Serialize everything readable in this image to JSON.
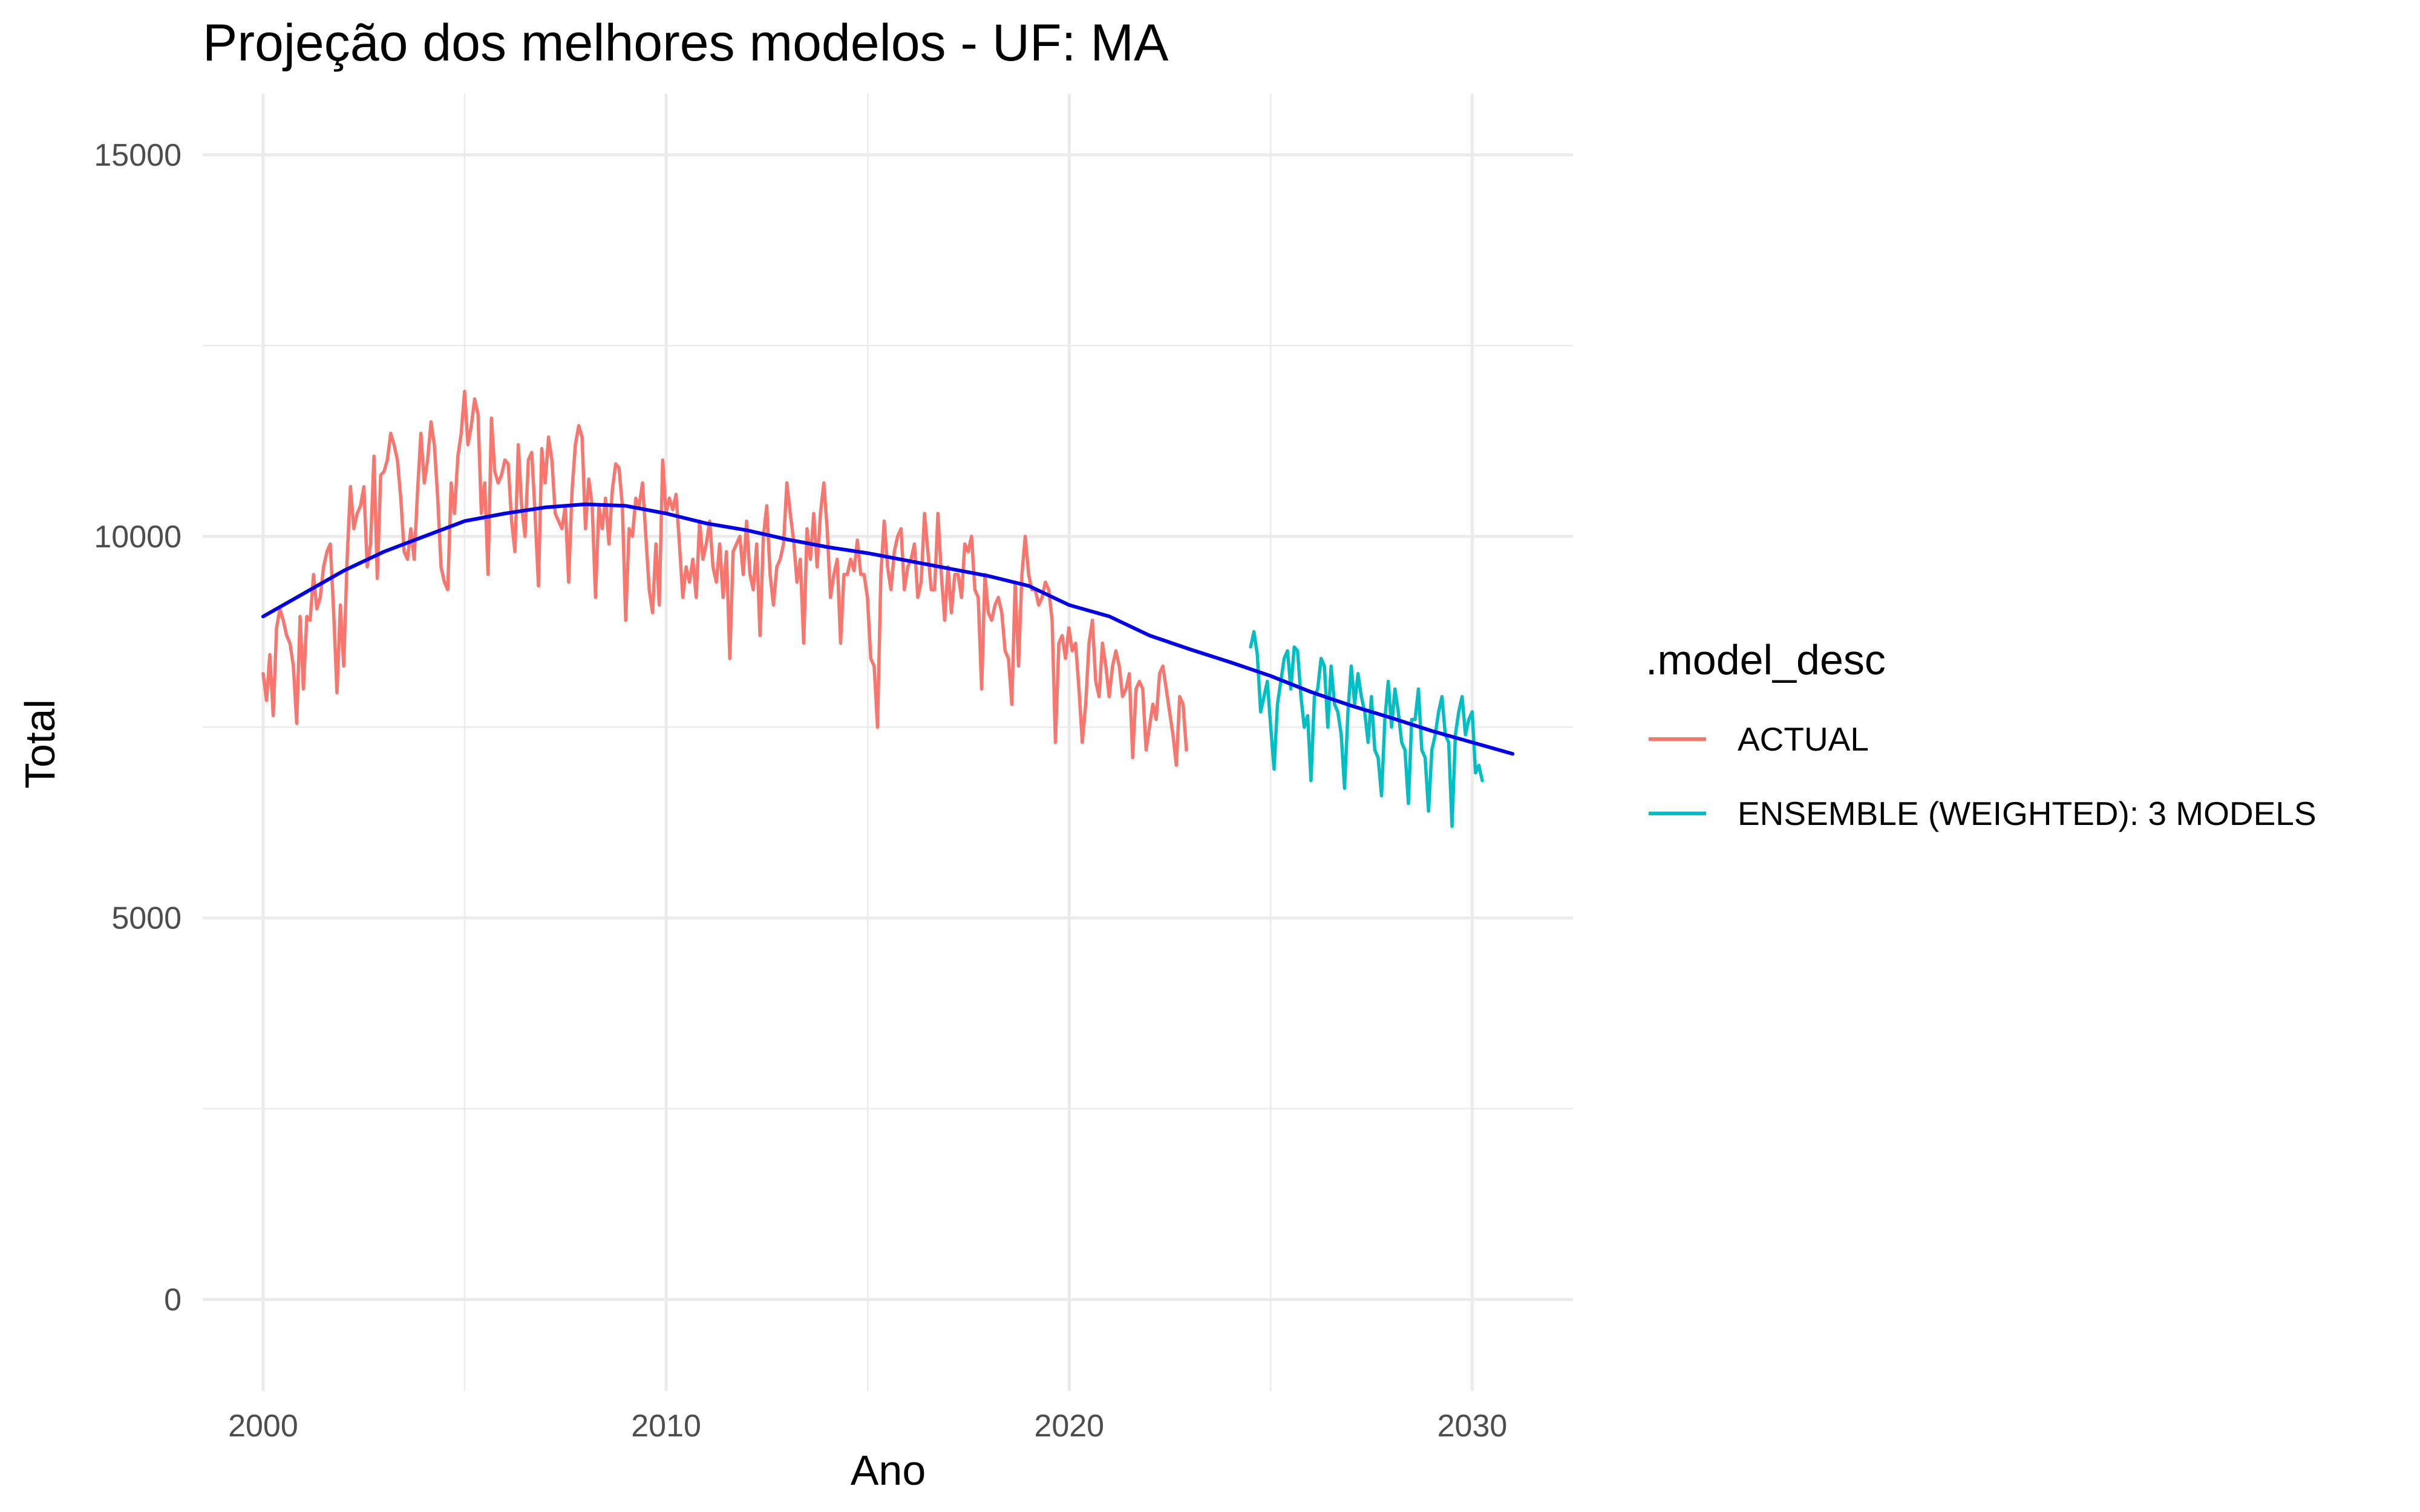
{
  "chart_data": {
    "type": "line",
    "title": "Projeção dos melhores modelos - UF: MA",
    "xlabel": "Ano",
    "ylabel": "Total",
    "xlim": [
      1998.5,
      2032.5
    ],
    "ylim": [
      -1200,
      15800
    ],
    "x_ticks": [
      2000,
      2010,
      2020,
      2030
    ],
    "x_tick_labels": [
      "2000",
      "2010",
      "2020",
      "2030"
    ],
    "y_ticks": [
      0,
      5000,
      10000,
      15000
    ],
    "y_tick_labels": [
      "0",
      "5000",
      "10000",
      "15000"
    ],
    "grid": true,
    "legend": {
      "title": ".model_desc",
      "position": "right"
    },
    "series": [
      {
        "name": "ACTUAL",
        "color": "#F8766D",
        "x_start": 2000.0,
        "x_step": 0.0833,
        "values": [
          8200,
          7850,
          8450,
          7650,
          8800,
          9050,
          8900,
          8700,
          8600,
          8300,
          7550,
          8950,
          8000,
          8950,
          8900,
          9500,
          9050,
          9200,
          9600,
          9800,
          9900,
          9000,
          7950,
          9100,
          8300,
          9700,
          10650,
          10100,
          10300,
          10400,
          10650,
          9600,
          9900,
          11050,
          9450,
          10800,
          10850,
          11000,
          11350,
          11200,
          11000,
          10500,
          9800,
          9700,
          10100,
          9700,
          10600,
          11350,
          10700,
          11000,
          11500,
          11200,
          10500,
          9600,
          9400,
          9300,
          10700,
          10300,
          11050,
          11350,
          11900,
          11200,
          11450,
          11800,
          11600,
          10300,
          10700,
          9500,
          11550,
          10850,
          10700,
          10800,
          11000,
          10950,
          10200,
          9800,
          11200,
          10400,
          10000,
          11000,
          11100,
          10300,
          9350,
          11150,
          10700,
          11300,
          11000,
          10300,
          10200,
          10100,
          10400,
          9400,
          10600,
          11200,
          11450,
          11300,
          10100,
          10750,
          10400,
          9200,
          10400,
          10100,
          10500,
          9900,
          10600,
          10950,
          10900,
          10400,
          8900,
          10100,
          10000,
          10500,
          10400,
          10700,
          10000,
          9300,
          9000,
          9900,
          9100,
          11000,
          10300,
          10500,
          10350,
          10550,
          9900,
          9200,
          9600,
          9400,
          9700,
          9200,
          10200,
          9700,
          9900,
          10200,
          9600,
          9400,
          9900,
          9200,
          9800,
          8400,
          9800,
          9900,
          10000,
          9500,
          10200,
          9500,
          9300,
          9900,
          8700,
          10000,
          10400,
          9500,
          9100,
          9600,
          9700,
          9900,
          10700,
          10300,
          9950,
          9400,
          9700,
          8600,
          10100,
          9700,
          10300,
          9600,
          10300,
          10700,
          10100,
          9200,
          9500,
          9700,
          8600,
          9500,
          9500,
          9700,
          9550,
          9950,
          9500,
          9500,
          9200,
          8400,
          8300,
          7500,
          9500,
          10200,
          9600,
          9300,
          9800,
          10000,
          10100,
          9300,
          9600,
          9700,
          9900,
          9200,
          9400,
          10300,
          9800,
          9300,
          9300,
          10300,
          9500,
          8900,
          9600,
          9000,
          9500,
          9500,
          9200,
          9900,
          9800,
          10000,
          9300,
          9200,
          8000,
          9500,
          9000,
          8900,
          9100,
          9200,
          9000,
          8500,
          8400,
          7800,
          9400,
          8300,
          9500,
          10000,
          9500,
          9300,
          9300,
          9100,
          9200,
          9400,
          9300,
          8900,
          7300,
          8600,
          8700,
          8400,
          8800,
          8500,
          8600,
          8000,
          7300,
          7800,
          8600,
          8900,
          8100,
          7900,
          8600,
          8300,
          7900,
          8300,
          8500,
          8300,
          7900,
          8000,
          8200,
          7100,
          8000,
          8100,
          8000,
          7200,
          7500,
          7800,
          7600,
          8200,
          8300,
          8000,
          7700,
          7400,
          7000,
          7900,
          7800,
          7200
        ]
      },
      {
        "name": "ENSEMBLE (WEIGHTED): 3 MODELS",
        "color": "#00BFC4",
        "x_start": 2024.5,
        "x_step": 0.0833,
        "values": [
          8550,
          8750,
          8450,
          7700,
          7900,
          8100,
          7500,
          6950,
          7800,
          8100,
          8400,
          8500,
          8000,
          8550,
          8500,
          7900,
          7500,
          7650,
          6800,
          7900,
          8000,
          8400,
          8300,
          7500,
          8300,
          7800,
          7700,
          7400,
          6700,
          7700,
          8300,
          7800,
          8200,
          7900,
          7700,
          7300,
          7900,
          7200,
          7100,
          6600,
          7600,
          8100,
          7500,
          8000,
          7700,
          7300,
          7200,
          6500,
          7600,
          7600,
          8000,
          7200,
          7100,
          6400,
          7200,
          7400,
          7700,
          7900,
          7400,
          7300,
          6200,
          7400,
          7700,
          7900,
          7400,
          7600,
          7700,
          6900,
          7000,
          6800
        ]
      },
      {
        "name": "trend",
        "color": "#0000EE",
        "x": [
          2000,
          2001,
          2002,
          2003,
          2004,
          2005,
          2006,
          2007,
          2008,
          2009,
          2010,
          2011,
          2012,
          2013,
          2014,
          2015,
          2016,
          2017,
          2018,
          2019,
          2020,
          2021,
          2022,
          2023,
          2024,
          2025,
          2026,
          2027,
          2028,
          2029,
          2030,
          2031
        ],
        "values": [
          8950,
          9250,
          9550,
          9800,
          10000,
          10200,
          10300,
          10380,
          10420,
          10400,
          10300,
          10170,
          10080,
          9960,
          9860,
          9780,
          9680,
          9580,
          9480,
          9350,
          9100,
          8950,
          8700,
          8520,
          8350,
          8170,
          7960,
          7780,
          7620,
          7450,
          7300,
          7150
        ]
      }
    ]
  }
}
